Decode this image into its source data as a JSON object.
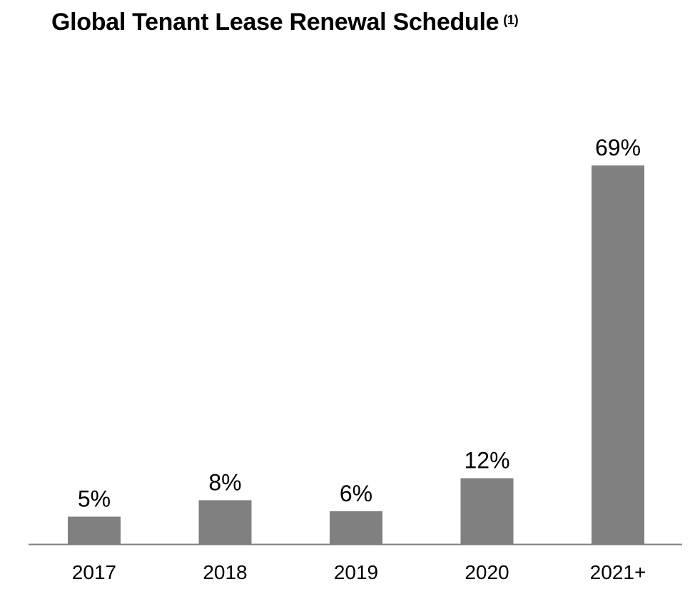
{
  "chart_data": {
    "type": "bar",
    "title": "Global Tenant Lease Renewal Schedule",
    "title_note": "(1)",
    "categories": [
      "2017",
      "2018",
      "2019",
      "2020",
      "2021+"
    ],
    "values": [
      5,
      8,
      6,
      12,
      69
    ],
    "data_labels": [
      "5%",
      "8%",
      "6%",
      "12%",
      "69%"
    ],
    "unit": "%",
    "ylim": [
      0,
      70
    ],
    "grid": false,
    "bar_color": "#808080",
    "axis_color": "#808080"
  }
}
